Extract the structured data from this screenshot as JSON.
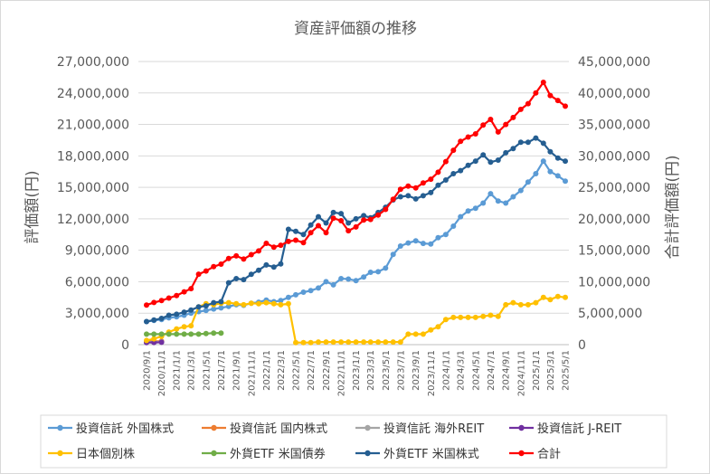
{
  "chart_data": {
    "type": "line",
    "title": "資産評価額の推移",
    "ylabel": "評価額(円)",
    "y2label": "合計評価額(円)",
    "ylim": [
      0,
      27000000
    ],
    "y2lim": [
      0,
      45000000
    ],
    "grid": true,
    "legend_position": "bottom",
    "y_ticks": [
      "0",
      "3,000,000",
      "6,000,000",
      "9,000,000",
      "12,000,000",
      "15,000,000",
      "18,000,000",
      "21,000,000",
      "24,000,000",
      "27,000,000"
    ],
    "y2_ticks": [
      "0",
      "5,000,000",
      "10,000,000",
      "15,000,000",
      "20,000,000",
      "25,000,000",
      "30,000,000",
      "35,000,000",
      "40,000,000",
      "45,000,000"
    ],
    "x_tick_labels": [
      "2020/9/1",
      "2020/11/1",
      "2021/1/1",
      "2021/3/1",
      "2021/5/1",
      "2021/7/1",
      "2021/9/1",
      "2021/11/1",
      "2022/1/1",
      "2022/3/1",
      "2022/5/1",
      "2022/7/1",
      "2022/9/1",
      "2022/11/1",
      "2023/1/1",
      "2023/3/1",
      "2023/5/1",
      "2023/7/1",
      "2023/9/1",
      "2023/11/1",
      "2024/1/1",
      "2024/3/1",
      "2024/5/1",
      "2024/7/1",
      "2024/9/1",
      "2024/11/1",
      "2025/1/1",
      "2025/3/1",
      "2025/5/1"
    ],
    "series": [
      {
        "name": "投資信託 外国株式",
        "color": "#5b9bd5",
        "axis": "left",
        "points": [
          [
            "2020/9/1",
            2200000
          ],
          [
            "2020/10/1",
            2300000
          ],
          [
            "2020/11/1",
            2400000
          ],
          [
            "2020/12/1",
            2550000
          ],
          [
            "2021/1/1",
            2650000
          ],
          [
            "2021/2/1",
            2800000
          ],
          [
            "2021/3/1",
            3000000
          ],
          [
            "2021/4/1",
            3150000
          ],
          [
            "2021/5/1",
            3250000
          ],
          [
            "2021/6/1",
            3400000
          ],
          [
            "2021/7/1",
            3500000
          ],
          [
            "2021/8/1",
            3650000
          ],
          [
            "2021/9/1",
            3800000
          ],
          [
            "2021/10/1",
            3750000
          ],
          [
            "2021/11/1",
            3950000
          ],
          [
            "2021/12/1",
            4050000
          ],
          [
            "2022/1/1",
            4250000
          ],
          [
            "2022/2/1",
            4100000
          ],
          [
            "2022/3/1",
            4200000
          ],
          [
            "2022/4/1",
            4500000
          ],
          [
            "2022/5/1",
            4750000
          ],
          [
            "2022/6/1",
            5000000
          ],
          [
            "2022/7/1",
            5150000
          ],
          [
            "2022/8/1",
            5400000
          ],
          [
            "2022/9/1",
            6000000
          ],
          [
            "2022/10/1",
            5700000
          ],
          [
            "2022/11/1",
            6300000
          ],
          [
            "2022/12/1",
            6250000
          ],
          [
            "2023/1/1",
            6100000
          ],
          [
            "2023/2/1",
            6450000
          ],
          [
            "2023/3/1",
            6900000
          ],
          [
            "2023/4/1",
            6950000
          ],
          [
            "2023/5/1",
            7300000
          ],
          [
            "2023/6/1",
            8600000
          ],
          [
            "2023/7/1",
            9400000
          ],
          [
            "2023/8/1",
            9700000
          ],
          [
            "2023/9/1",
            9900000
          ],
          [
            "2023/10/1",
            9650000
          ],
          [
            "2023/11/1",
            9600000
          ],
          [
            "2023/12/1",
            10200000
          ],
          [
            "2024/1/1",
            10500000
          ],
          [
            "2024/2/1",
            11300000
          ],
          [
            "2024/3/1",
            12200000
          ],
          [
            "2024/4/1",
            12750000
          ],
          [
            "2024/5/1",
            13000000
          ],
          [
            "2024/6/1",
            13500000
          ],
          [
            "2024/7/1",
            14400000
          ],
          [
            "2024/8/1",
            13700000
          ],
          [
            "2024/9/1",
            13500000
          ],
          [
            "2024/10/1",
            14100000
          ],
          [
            "2024/11/1",
            14700000
          ],
          [
            "2024/12/1",
            15500000
          ],
          [
            "2025/1/1",
            16300000
          ],
          [
            "2025/2/1",
            17500000
          ],
          [
            "2025/3/1",
            16500000
          ],
          [
            "2025/4/1",
            16100000
          ],
          [
            "2025/5/1",
            15600000
          ]
        ]
      },
      {
        "name": "投資信託 国内株式",
        "color": "#ed7d31",
        "axis": "left",
        "points": [
          [
            "2020/9/1",
            300000
          ],
          [
            "2020/10/1",
            320000
          ],
          [
            "2020/11/1",
            340000
          ]
        ]
      },
      {
        "name": "投資信託 海外REIT",
        "color": "#a5a5a5",
        "axis": "left",
        "points": [
          [
            "2020/9/1",
            250000
          ],
          [
            "2020/10/1",
            260000
          ],
          [
            "2020/11/1",
            270000
          ]
        ]
      },
      {
        "name": "投資信託 J-REIT",
        "color": "#7030a0",
        "axis": "left",
        "points": [
          [
            "2020/9/1",
            200000
          ],
          [
            "2020/10/1",
            210000
          ],
          [
            "2020/11/1",
            220000
          ]
        ]
      },
      {
        "name": "日本個別株",
        "color": "#ffc000",
        "axis": "left",
        "points": [
          [
            "2020/9/1",
            400000
          ],
          [
            "2020/10/1",
            550000
          ],
          [
            "2020/11/1",
            800000
          ],
          [
            "2020/12/1",
            1200000
          ],
          [
            "2021/1/1",
            1500000
          ],
          [
            "2021/2/1",
            1700000
          ],
          [
            "2021/3/1",
            1800000
          ],
          [
            "2021/4/1",
            3600000
          ],
          [
            "2021/5/1",
            3900000
          ],
          [
            "2021/6/1",
            3800000
          ],
          [
            "2021/7/1",
            3950000
          ],
          [
            "2021/8/1",
            4000000
          ],
          [
            "2021/9/1",
            3900000
          ],
          [
            "2021/10/1",
            3800000
          ],
          [
            "2021/11/1",
            3950000
          ],
          [
            "2021/12/1",
            3900000
          ],
          [
            "2022/1/1",
            4000000
          ],
          [
            "2022/2/1",
            3900000
          ],
          [
            "2022/3/1",
            3800000
          ],
          [
            "2022/4/1",
            3900000
          ],
          [
            "2022/5/1",
            200000
          ],
          [
            "2022/6/1",
            200000
          ],
          [
            "2022/7/1",
            200000
          ],
          [
            "2022/8/1",
            250000
          ],
          [
            "2022/9/1",
            250000
          ],
          [
            "2022/10/1",
            250000
          ],
          [
            "2022/11/1",
            250000
          ],
          [
            "2022/12/1",
            250000
          ],
          [
            "2023/1/1",
            250000
          ],
          [
            "2023/2/1",
            250000
          ],
          [
            "2023/3/1",
            250000
          ],
          [
            "2023/4/1",
            250000
          ],
          [
            "2023/5/1",
            250000
          ],
          [
            "2023/6/1",
            250000
          ],
          [
            "2023/7/1",
            250000
          ],
          [
            "2023/8/1",
            1000000
          ],
          [
            "2023/9/1",
            1000000
          ],
          [
            "2023/10/1",
            1000000
          ],
          [
            "2023/11/1",
            1400000
          ],
          [
            "2023/12/1",
            1700000
          ],
          [
            "2024/1/1",
            2400000
          ],
          [
            "2024/2/1",
            2600000
          ],
          [
            "2024/3/1",
            2600000
          ],
          [
            "2024/4/1",
            2600000
          ],
          [
            "2024/5/1",
            2600000
          ],
          [
            "2024/6/1",
            2700000
          ],
          [
            "2024/7/1",
            2800000
          ],
          [
            "2024/8/1",
            2700000
          ],
          [
            "2024/9/1",
            3800000
          ],
          [
            "2024/10/1",
            4000000
          ],
          [
            "2024/11/1",
            3800000
          ],
          [
            "2024/12/1",
            3800000
          ],
          [
            "2025/1/1",
            4000000
          ],
          [
            "2025/2/1",
            4500000
          ],
          [
            "2025/3/1",
            4300000
          ],
          [
            "2025/4/1",
            4600000
          ],
          [
            "2025/5/1",
            4500000
          ]
        ]
      },
      {
        "name": "外貨ETF 米国債券",
        "color": "#70ad47",
        "axis": "left",
        "points": [
          [
            "2020/9/1",
            1000000
          ],
          [
            "2020/10/1",
            1000000
          ],
          [
            "2020/11/1",
            1000000
          ],
          [
            "2020/12/1",
            1000000
          ],
          [
            "2021/1/1",
            1000000
          ],
          [
            "2021/2/1",
            1000000
          ],
          [
            "2021/3/1",
            1000000
          ],
          [
            "2021/4/1",
            1000000
          ],
          [
            "2021/5/1",
            1050000
          ],
          [
            "2021/6/1",
            1100000
          ],
          [
            "2021/7/1",
            1100000
          ]
        ]
      },
      {
        "name": "外貨ETF 米国株式",
        "color": "#255e91",
        "axis": "left",
        "points": [
          [
            "2020/9/1",
            2200000
          ],
          [
            "2020/10/1",
            2350000
          ],
          [
            "2020/11/1",
            2500000
          ],
          [
            "2020/12/1",
            2800000
          ],
          [
            "2021/1/1",
            2900000
          ],
          [
            "2021/2/1",
            3100000
          ],
          [
            "2021/3/1",
            3300000
          ],
          [
            "2021/4/1",
            3600000
          ],
          [
            "2021/5/1",
            3700000
          ],
          [
            "2021/6/1",
            4000000
          ],
          [
            "2021/7/1",
            4100000
          ],
          [
            "2021/8/1",
            5900000
          ],
          [
            "2021/9/1",
            6300000
          ],
          [
            "2021/10/1",
            6200000
          ],
          [
            "2021/11/1",
            6700000
          ],
          [
            "2021/12/1",
            7100000
          ],
          [
            "2022/1/1",
            7600000
          ],
          [
            "2022/2/1",
            7400000
          ],
          [
            "2022/3/1",
            7700000
          ],
          [
            "2022/4/1",
            11000000
          ],
          [
            "2022/5/1",
            10800000
          ],
          [
            "2022/6/1",
            10500000
          ],
          [
            "2022/7/1",
            11400000
          ],
          [
            "2022/8/1",
            12200000
          ],
          [
            "2022/9/1",
            11600000
          ],
          [
            "2022/10/1",
            12600000
          ],
          [
            "2022/11/1",
            12500000
          ],
          [
            "2022/12/1",
            11600000
          ],
          [
            "2023/1/1",
            12000000
          ],
          [
            "2023/2/1",
            12300000
          ],
          [
            "2023/3/1",
            12100000
          ],
          [
            "2023/4/1",
            12600000
          ],
          [
            "2023/5/1",
            13100000
          ],
          [
            "2023/6/1",
            13800000
          ],
          [
            "2023/7/1",
            14100000
          ],
          [
            "2023/8/1",
            14200000
          ],
          [
            "2023/9/1",
            13900000
          ],
          [
            "2023/10/1",
            14200000
          ],
          [
            "2023/11/1",
            14500000
          ],
          [
            "2023/12/1",
            15200000
          ],
          [
            "2024/1/1",
            15700000
          ],
          [
            "2024/2/1",
            16300000
          ],
          [
            "2024/3/1",
            16600000
          ],
          [
            "2024/4/1",
            17100000
          ],
          [
            "2024/5/1",
            17500000
          ],
          [
            "2024/6/1",
            18100000
          ],
          [
            "2024/7/1",
            17400000
          ],
          [
            "2024/8/1",
            17600000
          ],
          [
            "2024/9/1",
            18300000
          ],
          [
            "2024/10/1",
            18700000
          ],
          [
            "2024/11/1",
            19300000
          ],
          [
            "2024/12/1",
            19300000
          ],
          [
            "2025/1/1",
            19700000
          ],
          [
            "2025/2/1",
            19200000
          ],
          [
            "2025/3/1",
            18400000
          ],
          [
            "2025/4/1",
            17800000
          ],
          [
            "2025/5/1",
            17500000
          ]
        ]
      },
      {
        "name": "合計",
        "color": "#ff0000",
        "axis": "right",
        "points": [
          [
            "2020/9/1",
            6300000
          ],
          [
            "2020/10/1",
            6700000
          ],
          [
            "2020/11/1",
            7000000
          ],
          [
            "2020/12/1",
            7400000
          ],
          [
            "2021/1/1",
            7800000
          ],
          [
            "2021/2/1",
            8400000
          ],
          [
            "2021/3/1",
            8900000
          ],
          [
            "2021/4/1",
            11200000
          ],
          [
            "2021/5/1",
            11700000
          ],
          [
            "2021/6/1",
            12400000
          ],
          [
            "2021/7/1",
            12800000
          ],
          [
            "2021/8/1",
            13700000
          ],
          [
            "2021/9/1",
            14100000
          ],
          [
            "2021/10/1",
            13600000
          ],
          [
            "2021/11/1",
            14300000
          ],
          [
            "2021/12/1",
            14900000
          ],
          [
            "2022/1/1",
            16100000
          ],
          [
            "2022/2/1",
            15500000
          ],
          [
            "2022/3/1",
            15800000
          ],
          [
            "2022/4/1",
            16400000
          ],
          [
            "2022/5/1",
            16600000
          ],
          [
            "2022/6/1",
            16200000
          ],
          [
            "2022/7/1",
            17800000
          ],
          [
            "2022/8/1",
            18900000
          ],
          [
            "2022/9/1",
            17800000
          ],
          [
            "2022/10/1",
            20100000
          ],
          [
            "2022/11/1",
            19700000
          ],
          [
            "2022/12/1",
            18100000
          ],
          [
            "2023/1/1",
            18700000
          ],
          [
            "2023/2/1",
            19800000
          ],
          [
            "2023/3/1",
            19900000
          ],
          [
            "2023/4/1",
            20600000
          ],
          [
            "2023/5/1",
            21500000
          ],
          [
            "2023/6/1",
            23100000
          ],
          [
            "2023/7/1",
            24700000
          ],
          [
            "2023/8/1",
            25200000
          ],
          [
            "2023/9/1",
            24900000
          ],
          [
            "2023/10/1",
            25700000
          ],
          [
            "2023/11/1",
            26300000
          ],
          [
            "2023/12/1",
            27400000
          ],
          [
            "2024/1/1",
            29100000
          ],
          [
            "2024/2/1",
            30900000
          ],
          [
            "2024/3/1",
            32300000
          ],
          [
            "2024/4/1",
            33000000
          ],
          [
            "2024/5/1",
            33500000
          ],
          [
            "2024/6/1",
            34900000
          ],
          [
            "2024/7/1",
            35800000
          ],
          [
            "2024/8/1",
            33800000
          ],
          [
            "2024/9/1",
            35000000
          ],
          [
            "2024/10/1",
            36100000
          ],
          [
            "2024/11/1",
            37400000
          ],
          [
            "2024/12/1",
            38300000
          ],
          [
            "2025/1/1",
            40000000
          ],
          [
            "2025/2/1",
            41700000
          ],
          [
            "2025/3/1",
            39600000
          ],
          [
            "2025/4/1",
            38800000
          ],
          [
            "2025/5/1",
            37900000
          ]
        ]
      }
    ]
  }
}
